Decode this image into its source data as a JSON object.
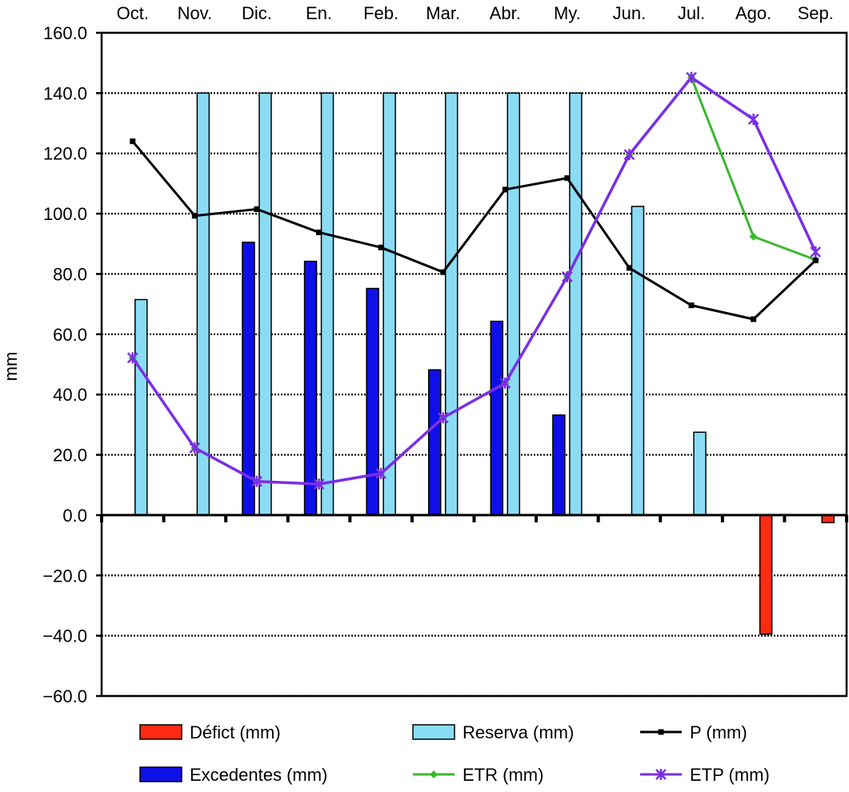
{
  "chart_data": {
    "type": "bar",
    "categories": [
      "Oct.",
      "Nov.",
      "Dic.",
      "En.",
      "Feb.",
      "Mar.",
      "Abr.",
      "My.",
      "Jun.",
      "Jul.",
      "Ago.",
      "Sep."
    ],
    "ylabel": "mm",
    "ylim": [
      -60,
      160
    ],
    "yticks": [
      "160.0",
      "140.0",
      "120.0",
      "100.0",
      "80.0",
      "60.0",
      "40.0",
      "20.0",
      "0.0",
      "−20.0",
      "−40.0",
      "−60.0"
    ],
    "ytick_values": [
      160,
      140,
      120,
      100,
      80,
      60,
      40,
      20,
      0,
      -20,
      -40,
      -60
    ],
    "grid": true,
    "legend_position": "bottom",
    "series": [
      {
        "name": "Défict (mm)",
        "kind": "bar",
        "color": "#ff2a12",
        "values": [
          0,
          0,
          0,
          0,
          0,
          0,
          0,
          0,
          0,
          0,
          -39.5,
          -2.5
        ]
      },
      {
        "name": "Excedentes (mm)",
        "kind": "bar",
        "color": "#0f0fe8",
        "values": [
          0,
          0,
          90.5,
          84.2,
          75.2,
          48.2,
          64.3,
          33.2,
          0,
          0,
          0,
          0
        ]
      },
      {
        "name": "Reserva (mm)",
        "kind": "bar",
        "color": "#8adcf5",
        "values": [
          71.5,
          140,
          140,
          140,
          140,
          140,
          140,
          140,
          102.4,
          27.5,
          0,
          0
        ]
      },
      {
        "name": "ETR (mm)",
        "kind": "line",
        "color": "#3ab82e",
        "marker": "diamond",
        "values": [
          52.2,
          22.3,
          11.2,
          10.3,
          13.8,
          32.3,
          43.8,
          79.1,
          119.6,
          145.2,
          92.4,
          84.7
        ]
      },
      {
        "name": "P (mm)",
        "kind": "line",
        "color": "#000000",
        "marker": "square",
        "values": [
          124.0,
          99.3,
          101.5,
          93.8,
          88.8,
          80.6,
          108.0,
          111.8,
          82.0,
          69.6,
          65.0,
          84.5
        ]
      },
      {
        "name": "ETP (mm)",
        "kind": "line",
        "color": "#7a2ee6",
        "marker": "star",
        "values": [
          52.2,
          22.3,
          11.2,
          10.3,
          13.8,
          32.3,
          43.8,
          79.1,
          119.6,
          145.2,
          131.3,
          87.3
        ]
      }
    ],
    "legend": {
      "rows": [
        [
          "Défict (mm)",
          "Reserva (mm)",
          "P (mm)"
        ],
        [
          "Excedentes (mm)",
          "ETR (mm)",
          "ETP (mm)"
        ]
      ]
    }
  }
}
